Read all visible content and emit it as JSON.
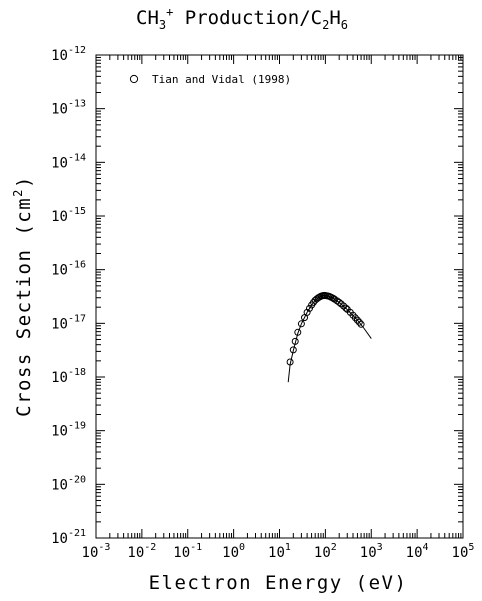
{
  "chart_data": {
    "type": "scatter",
    "title_parts": {
      "a": "CH",
      "a_sub": "3",
      "a_sup": "+",
      "b": " Production/C",
      "b_sub1": "2",
      "c": "H",
      "c_sub": "6"
    },
    "xlabel": "Electron Energy (eV)",
    "ylabel_main": "Cross Section (cm",
    "ylabel_sup": "2",
    "ylabel_close": ")",
    "x_scale": "log",
    "y_scale": "log",
    "x_exp_range": [
      -3,
      5
    ],
    "y_exp_range": [
      -21,
      -12
    ],
    "x_tick_exps": [
      -3,
      -2,
      -1,
      0,
      1,
      2,
      3,
      4,
      5
    ],
    "y_tick_exps": [
      -21,
      -20,
      -19,
      -18,
      -17,
      -16,
      -15,
      -14,
      -13,
      -12
    ],
    "tick_base": "10",
    "grid": false,
    "legend_position": "top-left",
    "series": [
      {
        "name": "Tian and Vidal (1998)",
        "marker": "open-circle",
        "x": [
          17,
          20,
          22,
          25,
          30,
          35,
          40,
          45,
          50,
          55,
          60,
          65,
          70,
          75,
          80,
          85,
          90,
          95,
          100,
          110,
          120,
          130,
          140,
          150,
          160,
          180,
          200,
          220,
          250,
          280,
          300,
          350,
          400,
          450,
          500,
          550,
          600
        ],
        "y": [
          1.9e-18,
          3.2e-18,
          4.6e-18,
          6.8e-18,
          9.8e-18,
          1.28e-17,
          1.6e-17,
          1.9e-17,
          2.2e-17,
          2.45e-17,
          2.7e-17,
          2.85e-17,
          3e-17,
          3.1e-17,
          3.2e-17,
          3.25e-17,
          3.3e-17,
          3.3e-17,
          3.3e-17,
          3.25e-17,
          3.2e-17,
          3.1e-17,
          3e-17,
          2.9e-17,
          2.8e-17,
          2.62e-17,
          2.45e-17,
          2.3e-17,
          2.1e-17,
          1.92e-17,
          1.82e-17,
          1.6e-17,
          1.42e-17,
          1.27e-17,
          1.15e-17,
          1.05e-17,
          9.6e-18
        ]
      },
      {
        "name": "",
        "marker": "line",
        "x": [
          15.5,
          17,
          20,
          25,
          30,
          40,
          50,
          60,
          70,
          80,
          90,
          100,
          120,
          150,
          200,
          300,
          500,
          700,
          1000
        ],
        "y": [
          8e-19,
          1.7e-18,
          3.1e-18,
          6.5e-18,
          9.8e-18,
          1.6e-17,
          2.2e-17,
          2.7e-17,
          3e-17,
          3.2e-17,
          3.3e-17,
          3.3e-17,
          3.2e-17,
          2.9e-17,
          2.45e-17,
          1.8e-17,
          1.15e-17,
          8e-18,
          5.2e-18
        ]
      }
    ]
  }
}
